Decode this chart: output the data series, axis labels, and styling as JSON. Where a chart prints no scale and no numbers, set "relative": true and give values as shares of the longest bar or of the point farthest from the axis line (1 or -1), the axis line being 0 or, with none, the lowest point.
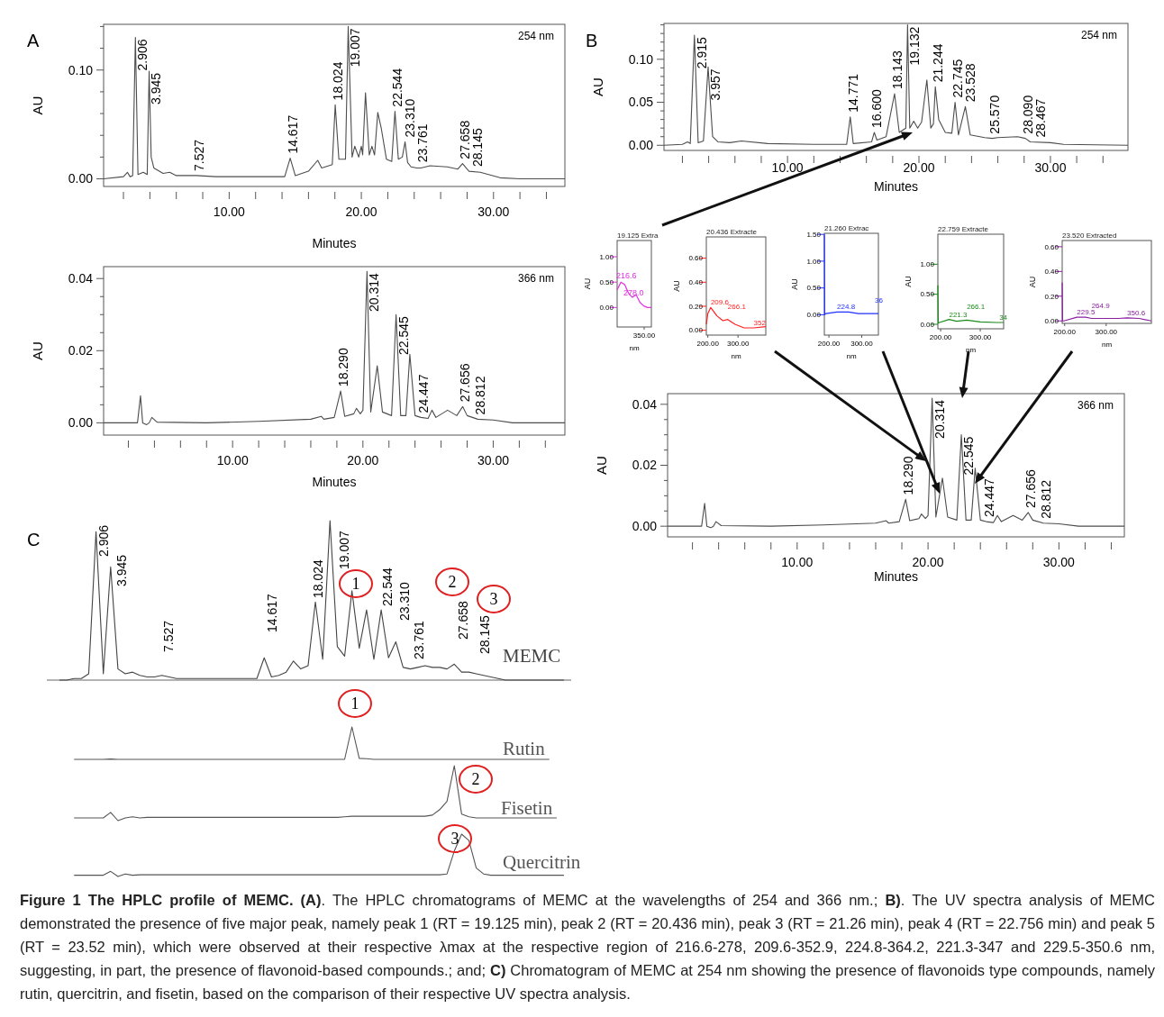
{
  "chart_data": [
    {
      "type": "line",
      "title": "A",
      "subtitle": "254 nm",
      "xlabel": "Minutes",
      "ylabel": "AU",
      "xlim": [
        0.5,
        35.4
      ],
      "ylim": [
        -0.007,
        0.142
      ],
      "xticks": [
        {
          "value": 2,
          "label": null
        },
        {
          "value": 4,
          "label": null
        },
        {
          "value": 6,
          "label": null
        },
        {
          "value": 8,
          "label": null
        },
        {
          "value": 10,
          "label": "10.00"
        },
        {
          "value": 12,
          "label": null
        },
        {
          "value": 14,
          "label": null
        },
        {
          "value": 16,
          "label": null
        },
        {
          "value": 18,
          "label": null
        },
        {
          "value": 20,
          "label": "20.00"
        },
        {
          "value": 22,
          "label": null
        },
        {
          "value": 24,
          "label": null
        },
        {
          "value": 26,
          "label": null
        },
        {
          "value": 28,
          "label": null
        },
        {
          "value": 30,
          "label": "30.00"
        },
        {
          "value": 32,
          "label": null
        },
        {
          "value": 34,
          "label": null
        }
      ],
      "yticks": [
        {
          "value": 0,
          "label": "0.00"
        },
        {
          "value": 0.02,
          "label": null
        },
        {
          "value": 0.04,
          "label": null
        },
        {
          "value": 0.06,
          "label": null
        },
        {
          "value": 0.08,
          "label": null
        },
        {
          "value": 0.1,
          "label": "0.10"
        },
        {
          "value": 0.12,
          "label": null
        },
        {
          "value": 0.14,
          "label": null
        }
      ],
      "x": [
        0.5,
        2.0,
        2.3,
        2.5,
        2.7,
        2.906,
        3.1,
        3.5,
        3.8,
        3.945,
        4.1,
        4.3,
        5.0,
        5.5,
        6.0,
        7.527,
        9,
        12,
        14.2,
        14.617,
        15.0,
        16.0,
        16.7,
        17.0,
        17.8,
        18.024,
        18.3,
        18.8,
        19.007,
        19.3,
        19.5,
        19.8,
        20.0,
        20.1,
        20.314,
        20.6,
        20.8,
        21.0,
        21.244,
        21.5,
        21.9,
        22.3,
        22.544,
        22.8,
        23.1,
        23.31,
        23.5,
        23.761,
        24.2,
        24.5,
        25.2,
        26.5,
        27.3,
        27.658,
        28.0,
        28.145,
        29.0,
        30.5,
        32,
        35.4
      ],
      "series": [
        {
          "color": "#4d4d4d",
          "values": [
            0,
            0.002,
            0.006,
            0.002,
            0.003,
            0.13,
            0.004,
            0.006,
            0.004,
            0.099,
            0.02,
            0.01,
            0.005,
            0.006,
            0.003,
            0.003,
            0.002,
            0.002,
            0.002,
            0.019,
            0.003,
            0.007,
            0.017,
            0.01,
            0.013,
            0.068,
            0.018,
            0.018,
            0.14,
            0.02,
            0.03,
            0.02,
            0.03,
            0.022,
            0.079,
            0.022,
            0.03,
            0.022,
            0.061,
            0.047,
            0.018,
            0.016,
            0.062,
            0.018,
            0.02,
            0.034,
            0.015,
            0.011,
            0.01,
            0.01,
            0.012,
            0.011,
            0.009,
            0.014,
            0.009,
            0.007,
            0.006,
            0.001,
            0,
            0
          ]
        }
      ],
      "annotations": [
        {
          "text": "2.906",
          "x": 2.906,
          "y": 0.13
        },
        {
          "text": "3.945",
          "x": 3.945,
          "y": 0.099
        },
        {
          "text": "7.527",
          "x": 7.527,
          "y": 0.003
        },
        {
          "text": "14.617",
          "x": 14.617,
          "y": 0.019
        },
        {
          "text": "18.024",
          "x": 18.024,
          "y": 0.068
        },
        {
          "text": "19.007",
          "x": 19.007,
          "y": 0.14
        },
        {
          "text": "22.544",
          "x": 22.544,
          "y": 0.062
        },
        {
          "text": "23.310",
          "x": 23.31,
          "y": 0.034
        },
        {
          "text": "23.761",
          "x": 23.761,
          "y": 0.011
        },
        {
          "text": "27.658",
          "x": 27.658,
          "y": 0.014
        },
        {
          "text": "28.145",
          "x": 28.145,
          "y": 0.007
        }
      ]
    },
    {
      "type": "line",
      "subtitle": "366 nm",
      "xlabel": "Minutes",
      "ylabel": "AU",
      "xlim": [
        0.1,
        35.5
      ],
      "ylim": [
        -0.0034,
        0.0433
      ],
      "xticks": [
        {
          "value": 2,
          "label": null
        },
        {
          "value": 4,
          "label": null
        },
        {
          "value": 6,
          "label": null
        },
        {
          "value": 8,
          "label": null
        },
        {
          "value": 10,
          "label": "10.00"
        },
        {
          "value": 12,
          "label": null
        },
        {
          "value": 14,
          "label": null
        },
        {
          "value": 16,
          "label": null
        },
        {
          "value": 18,
          "label": null
        },
        {
          "value": 20,
          "label": "20.00"
        },
        {
          "value": 22,
          "label": null
        },
        {
          "value": 24,
          "label": null
        },
        {
          "value": 26,
          "label": null
        },
        {
          "value": 28,
          "label": null
        },
        {
          "value": 30,
          "label": "30.00"
        },
        {
          "value": 32,
          "label": null
        },
        {
          "value": 34,
          "label": null
        }
      ],
      "yticks": [
        {
          "value": 0,
          "label": "0.00"
        },
        {
          "value": 0.005,
          "label": null
        },
        {
          "value": 0.01,
          "label": null
        },
        {
          "value": 0.015,
          "label": null
        },
        {
          "value": 0.02,
          "label": "0.02"
        },
        {
          "value": 0.025,
          "label": null
        },
        {
          "value": 0.03,
          "label": null
        },
        {
          "value": 0.035,
          "label": null
        },
        {
          "value": 0.04,
          "label": "0.04"
        }
      ],
      "x": [
        0.1,
        2.7,
        2.93,
        3.1,
        3.4,
        3.6,
        3.8,
        4.2,
        8,
        12,
        16,
        16.8,
        17,
        17.8,
        18.29,
        18.6,
        19.3,
        19.5,
        19.8,
        20.0,
        20.314,
        20.6,
        21.1,
        21.5,
        22.2,
        22.545,
        22.9,
        23.3,
        23.6,
        24.0,
        24.447,
        25.0,
        25.3,
        25.6,
        26.5,
        27.2,
        27.656,
        28.0,
        28.812,
        30,
        31.5,
        35.5
      ],
      "series": [
        {
          "color": "#4d4d4d",
          "values": [
            0,
            0,
            0.0075,
            0,
            -0.0005,
            0,
            0.0015,
            0.0002,
            0,
            0.0004,
            0.001,
            0.0018,
            0.001,
            0.0015,
            0.0088,
            0.0018,
            0.0025,
            0.004,
            0.0025,
            0.0035,
            0.042,
            0.003,
            0.0158,
            0.003,
            0.002,
            0.03,
            0.002,
            0.002,
            0.019,
            0.002,
            0.0015,
            0.0012,
            0.0035,
            0.0015,
            0.0035,
            0.002,
            0.0045,
            0.002,
            0.001,
            0.0008,
            0,
            0
          ]
        }
      ],
      "annotations": [
        {
          "text": "18.290",
          "x": 18.29,
          "y": 0.0088
        },
        {
          "text": "20.314",
          "x": 20.314,
          "y": 0.042
        },
        {
          "text": "22.545",
          "x": 22.545,
          "y": 0.03
        },
        {
          "text": "24.447",
          "x": 24.447,
          "y": 0.0015
        },
        {
          "text": "27.656",
          "x": 27.656,
          "y": 0.0045
        },
        {
          "text": "28.812",
          "x": 28.812,
          "y": 0.001
        }
      ]
    },
    {
      "type": "line",
      "title": "B",
      "subtitle": "254 nm",
      "xlabel": "Minutes",
      "ylabel": "AU",
      "xlim": [
        0.6,
        35.9
      ],
      "ylim": [
        -0.006,
        0.1417
      ],
      "xticks": [
        {
          "value": 2,
          "label": null
        },
        {
          "value": 4,
          "label": null
        },
        {
          "value": 6,
          "label": null
        },
        {
          "value": 8,
          "label": null
        },
        {
          "value": 10,
          "label": "10.00"
        },
        {
          "value": 12,
          "label": null
        },
        {
          "value": 14,
          "label": null
        },
        {
          "value": 16,
          "label": null
        },
        {
          "value": 18,
          "label": null
        },
        {
          "value": 20,
          "label": "20.00"
        },
        {
          "value": 22,
          "label": null
        },
        {
          "value": 24,
          "label": null
        },
        {
          "value": 26,
          "label": null
        },
        {
          "value": 28,
          "label": null
        },
        {
          "value": 30,
          "label": "30.00"
        },
        {
          "value": 32,
          "label": null
        },
        {
          "value": 34,
          "label": null
        }
      ],
      "yticks": [
        {
          "value": 0,
          "label": "0.00"
        },
        {
          "value": 0.01,
          "label": null
        },
        {
          "value": 0.02,
          "label": null
        },
        {
          "value": 0.03,
          "label": null
        },
        {
          "value": 0.04,
          "label": null
        },
        {
          "value": 0.05,
          "label": "0.05"
        },
        {
          "value": 0.06,
          "label": null
        },
        {
          "value": 0.07,
          "label": null
        },
        {
          "value": 0.08,
          "label": null
        },
        {
          "value": 0.09,
          "label": null
        },
        {
          "value": 0.1,
          "label": "0.10"
        },
        {
          "value": 0.11,
          "label": null
        },
        {
          "value": 0.12,
          "label": null
        },
        {
          "value": 0.13,
          "label": null
        },
        {
          "value": 0.14,
          "label": null
        }
      ],
      "x": [
        0.6,
        2.0,
        2.4,
        2.6,
        2.915,
        3.2,
        3.6,
        3.957,
        4.3,
        4.7,
        5.6,
        6.5,
        8.5,
        12,
        14.5,
        14.771,
        15.0,
        16.4,
        16.6,
        16.8,
        17.5,
        18.143,
        18.5,
        19.0,
        19.132,
        19.3,
        19.6,
        19.9,
        20.2,
        20.6,
        20.9,
        21.1,
        21.244,
        21.5,
        22.0,
        22.5,
        22.745,
        23.0,
        23.528,
        23.9,
        25.0,
        25.57,
        26,
        27.5,
        28.09,
        28.467,
        30,
        31,
        35.9
      ],
      "series": [
        {
          "color": "#4d4d4d",
          "values": [
            0,
            0.001,
            0.004,
            0.002,
            0.128,
            0.003,
            0.005,
            0.091,
            0.01,
            0.004,
            0.003,
            0.005,
            0.002,
            0.001,
            0.001,
            0.033,
            0.002,
            0.004,
            0.015,
            0.006,
            0.01,
            0.06,
            0.015,
            0.02,
            0.14,
            0.02,
            0.028,
            0.02,
            0.027,
            0.076,
            0.02,
            0.025,
            0.068,
            0.03,
            0.015,
            0.014,
            0.05,
            0.012,
            0.045,
            0.012,
            0.009,
            0.008,
            0.009,
            0.01,
            0.008,
            0.004,
            0.003,
            0.001,
            0
          ]
        }
      ],
      "annotations": [
        {
          "text": "2.915",
          "x": 2.915,
          "y": 0.128
        },
        {
          "text": "3.957",
          "x": 3.957,
          "y": 0.091
        },
        {
          "text": "14.771",
          "x": 14.771,
          "y": 0.033
        },
        {
          "text": "16.600",
          "x": 16.6,
          "y": 0.015
        },
        {
          "text": "18.143",
          "x": 18.143,
          "y": 0.06
        },
        {
          "text": "19.132",
          "x": 19.132,
          "y": 0.14
        },
        {
          "text": "21.244",
          "x": 21.244,
          "y": 0.068
        },
        {
          "text": "22.745",
          "x": 22.745,
          "y": 0.05
        },
        {
          "text": "23.528",
          "x": 23.528,
          "y": 0.045
        },
        {
          "text": "25.570",
          "x": 25.57,
          "y": 0.008
        },
        {
          "text": "28.090",
          "x": 28.09,
          "y": 0.008
        },
        {
          "text": "28.467",
          "x": 28.467,
          "y": 0.004
        }
      ]
    },
    {
      "type": "line",
      "title": "19.125 Extra",
      "xlabel": "nm",
      "ylabel": "AU",
      "ylim": [
        -0.385,
        1.32
      ],
      "yticks": [
        {
          "value": 0,
          "label": "0.00"
        },
        {
          "value": 0.5,
          "label": "0.50"
        },
        {
          "value": 1,
          "label": "1.00"
        }
      ],
      "categories": [
        null,
        null,
        null,
        null,
        null,
        null,
        null,
        null,
        null,
        null
      ],
      "series": [
        {
          "color": "#e030e0",
          "values": [
            0.35,
            0.5,
            0.45,
            0.28,
            0.2,
            0.25,
            0.1,
            0.03,
            0,
            0
          ]
        }
      ],
      "annotations": [
        "350.00",
        "216.6",
        "278.0"
      ]
    },
    {
      "type": "line",
      "title": "20.436 Extracte",
      "xlabel": "nm",
      "ylabel": "AU",
      "xlim": [
        195,
        392
      ],
      "ylim": [
        -0.04,
        0.777
      ],
      "xticks": [
        {
          "value": 200,
          "label": "200.00"
        },
        {
          "value": 300,
          "label": "300.00"
        }
      ],
      "yticks": [
        {
          "value": 0,
          "label": "0.00"
        },
        {
          "value": 0.2,
          "label": "0.20"
        },
        {
          "value": 0.4,
          "label": "0.40"
        },
        {
          "value": 0.6,
          "label": "0.60"
        }
      ],
      "x": [
        195,
        200,
        209.6,
        230,
        250,
        266.1,
        290,
        320,
        352,
        392
      ],
      "series": [
        {
          "color": "#ff2020",
          "values": [
            0.05,
            0.14,
            0.19,
            0.12,
            0.08,
            0.09,
            0.05,
            0.02,
            0.02,
            0.03
          ]
        }
      ],
      "annotations": [
        {
          "text": "209.6",
          "x": 209.6,
          "y": 0.19
        },
        {
          "text": "266.1",
          "x": 266.1,
          "y": 0.09
        },
        {
          "text": "352",
          "x": 352,
          "y": 0.02
        }
      ]
    },
    {
      "type": "line",
      "title": "21.260 Extrac",
      "xlabel": "nm",
      "ylabel": "AU",
      "xlim": [
        186,
        351
      ],
      "ylim": [
        -0.38,
        1.52
      ],
      "xticks": [
        {
          "value": 200,
          "label": "200.00"
        },
        {
          "value": 300,
          "label": "300.00"
        }
      ],
      "yticks": [
        {
          "value": 0,
          "label": "0.00"
        },
        {
          "value": 0.5,
          "label": "0.50"
        },
        {
          "value": 1,
          "label": "1.00"
        },
        {
          "value": 1.5,
          "label": "1.50"
        }
      ],
      "x": [
        186,
        187,
        190,
        224.8,
        260,
        290,
        351
      ],
      "series": [
        {
          "color": "#2030ff",
          "values": [
            1.5,
            0,
            0.02,
            0.05,
            0.05,
            0.02,
            0.02
          ]
        }
      ],
      "annotations": [
        {
          "text": "224.8",
          "x": 224.8,
          "y": 0.05
        },
        {
          "text": "36",
          "x": 340,
          "y": 0.02
        }
      ]
    },
    {
      "type": "line",
      "title": "22.759 Extracte",
      "xlabel": "nm",
      "ylabel": "AU",
      "xlim": [
        193,
        359
      ],
      "ylim": [
        -0.075,
        1.5
      ],
      "xticks": [
        {
          "value": 200,
          "label": "200.00"
        },
        {
          "value": 300,
          "label": "300.00"
        }
      ],
      "yticks": [
        {
          "value": 0,
          "label": "0.00"
        },
        {
          "value": 0.5,
          "label": "0.50"
        },
        {
          "value": 1,
          "label": "1.00"
        }
      ],
      "x": [
        193,
        194,
        197,
        221.3,
        240,
        266.1,
        300,
        340,
        359
      ],
      "series": [
        {
          "color": "#1a8a1a",
          "values": [
            0.65,
            0.02,
            0.03,
            0.08,
            0.05,
            0.07,
            0.04,
            0.03,
            0.03
          ]
        }
      ],
      "annotations": [
        {
          "text": "221.3",
          "x": 221.3,
          "y": 0.08
        },
        {
          "text": "266.1",
          "x": 266.1,
          "y": 0.07
        },
        {
          "text": "34",
          "x": 348,
          "y": 0.03
        }
      ]
    },
    {
      "type": "line",
      "title": "23.520 Extracted",
      "xlabel": "nm",
      "ylabel": "AU",
      "xlim": [
        194,
        409
      ],
      "ylim": [
        -0.02,
        0.65
      ],
      "xticks": [
        {
          "value": 200,
          "label": "200.00"
        },
        {
          "value": 300,
          "label": "300.00"
        }
      ],
      "yticks": [
        {
          "value": 0,
          "label": "0.00"
        },
        {
          "value": 0.2,
          "label": "0.20"
        },
        {
          "value": 0.4,
          "label": "0.40"
        },
        {
          "value": 0.6,
          "label": "0.60"
        }
      ],
      "x": [
        194,
        195,
        198,
        229.5,
        250,
        264.9,
        300,
        330,
        350.6,
        380,
        409
      ],
      "series": [
        {
          "color": "#8a20a0",
          "values": [
            0.31,
            0,
            0,
            0.03,
            0.03,
            0.02,
            0.02,
            0.02,
            0.025,
            0.02,
            0
          ]
        }
      ],
      "annotations": [
        {
          "text": "229.5",
          "x": 229.5,
          "y": 0.03
        },
        {
          "text": "264.9",
          "x": 264.9,
          "y": 0.02
        },
        {
          "text": "350.6",
          "x": 350.6,
          "y": 0.025
        }
      ]
    },
    {
      "type": "line",
      "subtitle": "366 nm",
      "xlabel": "Minutes",
      "ylabel": "AU",
      "xlim": [
        0.1,
        35
      ],
      "ylim": [
        -0.0035,
        0.0435
      ],
      "xticks": [
        {
          "value": 2,
          "label": null
        },
        {
          "value": 4,
          "label": null
        },
        {
          "value": 6,
          "label": null
        },
        {
          "value": 8,
          "label": null
        },
        {
          "value": 10,
          "label": "10.00"
        },
        {
          "value": 12,
          "label": null
        },
        {
          "value": 14,
          "label": null
        },
        {
          "value": 16,
          "label": null
        },
        {
          "value": 18,
          "label": null
        },
        {
          "value": 20,
          "label": "20.00"
        },
        {
          "value": 22,
          "label": null
        },
        {
          "value": 24,
          "label": null
        },
        {
          "value": 26,
          "label": null
        },
        {
          "value": 28,
          "label": null
        },
        {
          "value": 30,
          "label": "30.00"
        },
        {
          "value": 32,
          "label": null
        },
        {
          "value": 34,
          "label": null
        }
      ],
      "yticks": [
        {
          "value": 0,
          "label": "0.00"
        },
        {
          "value": 0.005,
          "label": null
        },
        {
          "value": 0.01,
          "label": null
        },
        {
          "value": 0.015,
          "label": null
        },
        {
          "value": 0.02,
          "label": "0.02"
        },
        {
          "value": 0.025,
          "label": null
        },
        {
          "value": 0.03,
          "label": null
        },
        {
          "value": 0.035,
          "label": null
        },
        {
          "value": 0.04,
          "label": "0.04"
        }
      ],
      "x": [
        0.1,
        2.7,
        2.93,
        3.1,
        3.4,
        3.6,
        3.8,
        4.2,
        8,
        12,
        16,
        16.8,
        17,
        17.8,
        18.29,
        18.6,
        19.3,
        19.5,
        19.8,
        20.0,
        20.314,
        20.6,
        21.1,
        21.5,
        22.2,
        22.545,
        22.9,
        23.3,
        23.6,
        24.0,
        24.447,
        25.0,
        25.3,
        25.6,
        26.5,
        27.2,
        27.656,
        28.0,
        28.812,
        30,
        31.5,
        35
      ],
      "series": [
        {
          "color": "#4d4d4d",
          "values": [
            0,
            0,
            0.0075,
            0,
            -0.0005,
            0,
            0.0015,
            0.0002,
            0,
            0.0004,
            0.001,
            0.0018,
            0.001,
            0.0015,
            0.0088,
            0.0018,
            0.0025,
            0.004,
            0.0025,
            0.0035,
            0.042,
            0.003,
            0.0158,
            0.003,
            0.002,
            0.03,
            0.002,
            0.002,
            0.019,
            0.002,
            0.0015,
            0.0012,
            0.0035,
            0.0015,
            0.0035,
            0.002,
            0.0045,
            0.002,
            0.001,
            0.0008,
            0,
            0
          ]
        }
      ],
      "annotations": [
        {
          "text": "18.290",
          "x": 18.29,
          "y": 0.0088
        },
        {
          "text": "20.314",
          "x": 20.314,
          "y": 0.042
        },
        {
          "text": "22.545",
          "x": 22.545,
          "y": 0.03
        },
        {
          "text": "24.447",
          "x": 24.447,
          "y": 0.0015
        },
        {
          "text": "27.656",
          "x": 27.656,
          "y": 0.0045
        },
        {
          "text": "28.812",
          "x": 28.812,
          "y": 0.001
        }
      ]
    },
    {
      "type": "line",
      "title": "C",
      "relative": true,
      "categories": [
        null,
        null,
        null,
        null,
        null,
        null,
        null,
        null,
        null,
        null,
        null,
        null,
        null,
        null,
        null,
        null,
        null,
        null,
        null,
        null,
        null,
        null,
        null,
        null,
        null,
        null,
        null,
        null,
        null,
        null,
        null,
        null,
        null,
        null,
        null,
        null,
        null,
        null,
        null,
        null,
        null,
        null,
        null,
        null,
        null,
        null,
        null,
        null,
        null,
        null,
        null,
        null,
        null,
        null,
        null,
        null,
        null,
        null,
        null,
        null,
        null,
        null,
        null,
        null,
        null,
        null,
        null,
        null,
        null,
        null
      ],
      "series": [
        {
          "name": "MEMC",
          "color": "#444444",
          "values": [
            0,
            0,
            0.01,
            0.01,
            0.04,
            0.93,
            0.04,
            0.71,
            0.07,
            0.04,
            0.05,
            0.03,
            0.02,
            0.02,
            0.03,
            0.02,
            0.01,
            0.01,
            0.01,
            0.01,
            0.01,
            0.01,
            0.01,
            0.01,
            0.01,
            0.01,
            0.01,
            0.01,
            0.14,
            0.02,
            0.03,
            0.05,
            0.12,
            0.07,
            0.09,
            0.49,
            0.13,
            1,
            0.21,
            0.15,
            0.56,
            0.2,
            0.44,
            0.13,
            0.44,
            0.14,
            0.24,
            0.08,
            0.07,
            0.08,
            0.09,
            0.08,
            0.08,
            0.07,
            0.1,
            0.05,
            0.05,
            0.04,
            0.03,
            0.02,
            0.01,
            0,
            0,
            0,
            0,
            0,
            0,
            0,
            0,
            0
          ]
        }
      ],
      "annotations": [
        "2.906",
        "3.945",
        "7.527",
        "14.617",
        "18.024",
        "19.007",
        "22.544",
        "23.310",
        "23.761",
        "27.658",
        "28.145",
        "1",
        "2",
        "3"
      ]
    },
    {
      "type": "line",
      "relative": true,
      "categories": [
        null,
        null,
        null,
        null,
        null,
        null,
        null,
        null,
        null,
        null,
        null,
        null,
        null,
        null,
        null,
        null,
        null,
        null,
        null,
        null,
        null,
        null,
        null,
        null,
        null,
        null,
        null,
        null,
        null,
        null,
        null,
        null,
        null,
        null,
        null,
        null,
        null,
        null,
        null,
        null,
        null,
        null,
        null,
        null,
        null,
        null,
        null,
        null,
        null,
        null,
        null,
        null,
        null,
        null,
        null,
        null,
        null,
        null,
        null,
        null,
        null,
        null,
        null,
        null,
        null,
        null,
        null,
        null,
        null,
        null
      ],
      "series": [
        {
          "name": "Rutin",
          "color": "#555555",
          "values": [
            null,
            null,
            0,
            0,
            0,
            0,
            0,
            0.01,
            0,
            0,
            0,
            0,
            0,
            0,
            0,
            0,
            0,
            0,
            0,
            0,
            0,
            0,
            0,
            0,
            0,
            0,
            0,
            0,
            0,
            0,
            0,
            0,
            0,
            0,
            0,
            0,
            0,
            0,
            0,
            0,
            1,
            0.03,
            0.02,
            0,
            0,
            0,
            0,
            0,
            0,
            0,
            0,
            0,
            0,
            0,
            0,
            0,
            0,
            0,
            0,
            0,
            0,
            0,
            0,
            0,
            0,
            0,
            0,
            0,
            null,
            null
          ]
        }
      ],
      "annotations": [
        "1"
      ]
    },
    {
      "type": "line",
      "relative": true,
      "categories": [
        null,
        null,
        null,
        null,
        null,
        null,
        null,
        null,
        null,
        null,
        null,
        null,
        null,
        null,
        null,
        null,
        null,
        null,
        null,
        null,
        null,
        null,
        null,
        null,
        null,
        null,
        null,
        null,
        null,
        null,
        null,
        null,
        null,
        null,
        null,
        null,
        null,
        null,
        null,
        null,
        null,
        null,
        null,
        null,
        null,
        null,
        null,
        null,
        null,
        null,
        null,
        null,
        null,
        null,
        null,
        null,
        null,
        null,
        null,
        null,
        null,
        null,
        null,
        null,
        null,
        null,
        null,
        null,
        null,
        null
      ],
      "series": [
        {
          "name": "Fisetin",
          "color": "#555555",
          "values": [
            null,
            null,
            0.05,
            0.05,
            0.05,
            0.05,
            0.05,
            0.15,
            0,
            0.05,
            0.07,
            0.05,
            0.06,
            0.06,
            0.06,
            0.06,
            0.06,
            0.06,
            0.06,
            0.06,
            0.06,
            0.06,
            0.06,
            0.06,
            0.06,
            0.06,
            0.06,
            0.06,
            0.06,
            0.06,
            0.06,
            0.06,
            0.06,
            0.06,
            0.06,
            0.06,
            0.06,
            0.06,
            0.06,
            0.07,
            0.08,
            0.08,
            0.08,
            0.08,
            0.08,
            0.08,
            0.08,
            0.08,
            0.08,
            0.08,
            0.08,
            0.1,
            0.2,
            0.35,
            1,
            0.12,
            0.07,
            0.05,
            0.05,
            0.05,
            0.05,
            0.05,
            0.05,
            0.05,
            0.05,
            0.05,
            0.05,
            0.05,
            0.05,
            null
          ]
        }
      ],
      "annotations": [
        "2"
      ]
    },
    {
      "type": "line",
      "relative": true,
      "categories": [
        null,
        null,
        null,
        null,
        null,
        null,
        null,
        null,
        null,
        null,
        null,
        null,
        null,
        null,
        null,
        null,
        null,
        null,
        null,
        null,
        null,
        null,
        null,
        null,
        null,
        null,
        null,
        null,
        null,
        null,
        null,
        null,
        null,
        null,
        null,
        null,
        null,
        null,
        null,
        null,
        null,
        null,
        null,
        null,
        null,
        null,
        null,
        null,
        null,
        null,
        null,
        null,
        null,
        null,
        null,
        null,
        null,
        null,
        null,
        null,
        null,
        null,
        null,
        null,
        null,
        null,
        null,
        null,
        null,
        null
      ],
      "series": [
        {
          "name": "Quercitrin",
          "color": "#555555",
          "values": [
            null,
            null,
            0.03,
            0.03,
            0.03,
            0.03,
            0.03,
            0.12,
            0,
            0.06,
            0.03,
            0.04,
            0.04,
            0.04,
            0.04,
            0.04,
            0.04,
            0.04,
            0.04,
            0.04,
            0.04,
            0.04,
            0.04,
            0.04,
            0.04,
            0.04,
            0.04,
            0.04,
            0.04,
            0.04,
            0.04,
            0.04,
            0.04,
            0.04,
            0.04,
            0.04,
            0.04,
            0.04,
            0.04,
            0.04,
            0.04,
            0.04,
            0.04,
            0.04,
            0.04,
            0.04,
            0.04,
            0.04,
            0.04,
            0.04,
            0.04,
            0.04,
            0.04,
            0.06,
            0.6,
            1,
            0.85,
            0.2,
            0.06,
            0.03,
            0.03,
            0.03,
            0.03,
            0.03,
            0.03,
            0.03,
            0.03,
            0.03,
            0.03,
            0.03
          ]
        }
      ],
      "annotations": [
        "3"
      ]
    },
    {
      "type": "other",
      "title": "Figure 1 The HPLC profile of MEMC. (A)",
      "annotations": [
        ". The HPLC chromatograms of MEMC at the wavelengths of 254 and 366 nm.; ",
        "B)",
        ". The UV spectra analysis of MEMC demonstrated the presence of five major peak, namely peak 1 (RT = 19.125 min), peak 2 (RT = 20.436 min), peak 3 (RT = 21.26 min), peak 4 (RT = 22.756 min) and peak 5 (RT = 23.52 min), which were observed at their respective λmax at the respective region of 216.6-278, 209.6-352.9, 224.8-364.2, 221.3-347 and 229.5-350.6 nm,   suggesting, in part, the presence of flavonoid-based compounds.; and; ",
        "C)",
        " Chromatogram of MEMC at 254 nm showing the presence of flavonoids type compounds, namely rutin, quercitrin, and fisetin, based on the comparison of their respective UV spectra analysis."
      ]
    }
  ]
}
